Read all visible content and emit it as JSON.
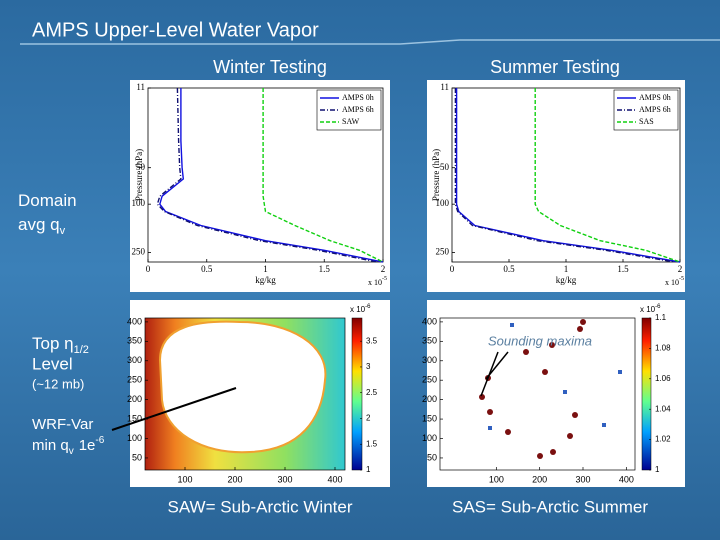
{
  "slide": {
    "title": "AMPS Upper-Level Water Vapor",
    "domain_label": {
      "line1": "Domain",
      "line2": "avg q",
      "sub": "v"
    },
    "top_label": {
      "line1": "Top η",
      "sub": "1/2",
      "line2": "Level",
      "note": "(~12 mb)"
    },
    "wrf_label": {
      "line1": "WRF-Var",
      "line2": "min q",
      "sub": "v",
      "after": "1e",
      "sup": "-6"
    },
    "captions": [
      "SAW= Sub-Arctic Winter",
      "SAS= Sub-Arctic Summer"
    ]
  },
  "profiles": [
    {
      "heading": "Winter Testing",
      "ylabel": "Pressure (hPa)",
      "xlabel": "kg/kg",
      "multiplier": {
        "base": "x 10",
        "exp": "-5"
      },
      "log_y": true,
      "xlim": [
        0,
        2
      ],
      "ylim": [
        11,
        300
      ],
      "xticks": [
        0,
        0.5,
        1,
        1.5,
        2
      ],
      "yticks": [
        11,
        50,
        100,
        250
      ],
      "pressure": [
        11,
        30,
        50,
        62,
        86,
        100,
        115,
        150,
        200,
        240,
        300
      ],
      "series": [
        {
          "name": "AMPS 0h",
          "color": "#1010e0",
          "dash": "solid",
          "values": [
            0.28,
            0.28,
            0.29,
            0.3,
            0.12,
            0.1,
            0.15,
            0.45,
            1.0,
            1.5,
            2.0
          ]
        },
        {
          "name": "AMPS 6h",
          "color": "#101070",
          "dash": "dashdot",
          "values": [
            0.25,
            0.26,
            0.27,
            0.28,
            0.1,
            0.08,
            0.14,
            0.42,
            0.95,
            1.45,
            1.95
          ]
        },
        {
          "name": "SAW",
          "color": "#10d010",
          "dash": "dashed",
          "values": [
            0.98,
            0.98,
            0.98,
            0.98,
            0.98,
            0.99,
            1.0,
            1.25,
            1.55,
            1.8,
            2.0
          ]
        }
      ]
    },
    {
      "heading": "Summer Testing",
      "ylabel": "Pressure (hPa)",
      "xlabel": "kg/kg",
      "multiplier": {
        "base": "x 10",
        "exp": "-5"
      },
      "log_y": true,
      "xlim": [
        0,
        2
      ],
      "ylim": [
        11,
        300
      ],
      "xticks": [
        0,
        0.5,
        1,
        1.5,
        2
      ],
      "yticks": [
        11,
        50,
        100,
        250
      ],
      "pressure": [
        11,
        30,
        50,
        62,
        86,
        100,
        115,
        150,
        200,
        240,
        300
      ],
      "series": [
        {
          "name": "AMPS 0h",
          "color": "#1010e0",
          "dash": "solid",
          "values": [
            0.04,
            0.04,
            0.04,
            0.04,
            0.04,
            0.04,
            0.06,
            0.2,
            0.8,
            1.4,
            2.0
          ]
        },
        {
          "name": "AMPS 6h",
          "color": "#101070",
          "dash": "dashdot",
          "values": [
            0.03,
            0.03,
            0.03,
            0.03,
            0.03,
            0.03,
            0.05,
            0.18,
            0.75,
            1.35,
            1.95
          ]
        },
        {
          "name": "SAS",
          "color": "#10d010",
          "dash": "dashed",
          "values": [
            0.73,
            0.73,
            0.73,
            0.73,
            0.73,
            0.73,
            0.76,
            0.95,
            1.3,
            1.7,
            2.0
          ]
        }
      ]
    }
  ],
  "maps": [
    {
      "xlim": [
        20,
        420
      ],
      "ylim": [
        19,
        410
      ],
      "xticks": [
        100,
        200,
        300,
        400
      ],
      "yticks": [
        400,
        350,
        300,
        250,
        200,
        150,
        100,
        50
      ],
      "colorbar": {
        "lim": [
          1,
          3.95
        ],
        "ticks": [
          3.5,
          3,
          2.5,
          2,
          1.5,
          1
        ],
        "multiplier": {
          "base": "x 10",
          "exp": "-6"
        }
      }
    },
    {
      "xlim": [
        -30,
        420
      ],
      "ylim": [
        19,
        410
      ],
      "xticks": [
        100,
        200,
        300,
        400
      ],
      "yticks": [
        400,
        350,
        300,
        250,
        200,
        150,
        100,
        50
      ],
      "colorbar": {
        "lim": [
          1,
          1.1
        ],
        "ticks": [
          1.1,
          1.08,
          1.06,
          1.04,
          1.02,
          1
        ],
        "multiplier": {
          "base": "x 10",
          "exp": "-6"
        }
      },
      "annotation": "Sounding maxima"
    }
  ]
}
